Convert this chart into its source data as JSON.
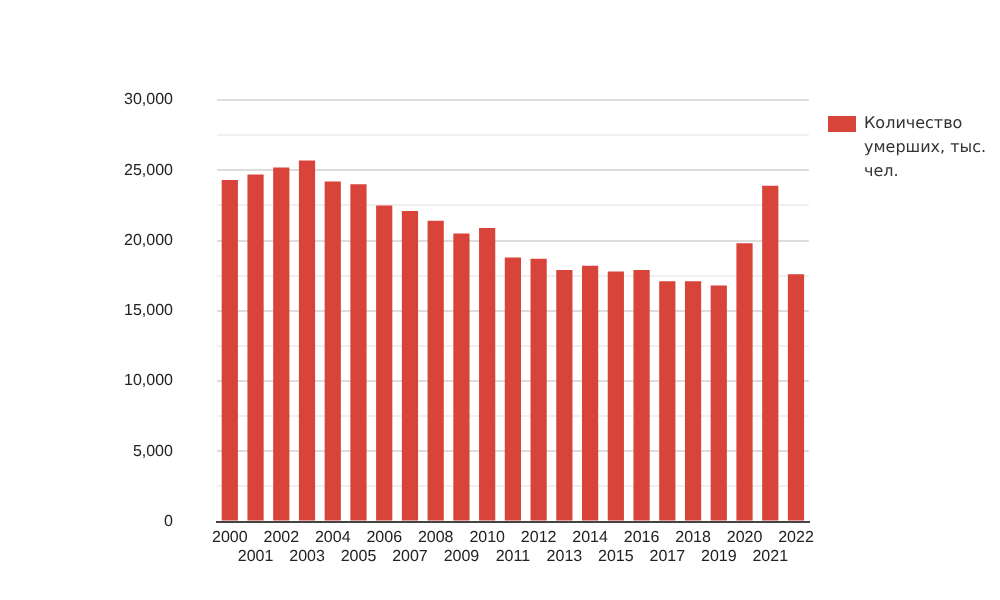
{
  "chart_data": {
    "type": "bar",
    "categories": [
      "2000",
      "2001",
      "2002",
      "2003",
      "2004",
      "2005",
      "2006",
      "2007",
      "2008",
      "2009",
      "2010",
      "2011",
      "2012",
      "2013",
      "2014",
      "2015",
      "2016",
      "2017",
      "2018",
      "2019",
      "2020",
      "2021",
      "2022"
    ],
    "series": [
      {
        "name": "Количество умерших, тыс. чел.",
        "color": "#d9443a",
        "values": [
          24300,
          24700,
          25200,
          25700,
          24200,
          24000,
          22500,
          22100,
          21400,
          20500,
          20900,
          18800,
          18700,
          17900,
          18200,
          17800,
          17900,
          17100,
          17100,
          16800,
          19800,
          23900,
          17600
        ]
      }
    ],
    "ylim": [
      0,
      30000
    ],
    "yticks": [
      0,
      {
        "value": 2500,
        "label": null
      },
      "5,000",
      {
        "value": 7500,
        "label": null
      },
      {
        "value": 10000,
        "label": "10,000"
      },
      {
        "value": 12500,
        "label": null
      },
      {
        "value": 15000,
        "label": "15,000"
      },
      {
        "value": 17500,
        "label": null
      },
      {
        "value": 20000,
        "label": "20,000"
      },
      {
        "value": 22500,
        "label": null
      },
      {
        "value": 25000,
        "label": "25,000"
      },
      {
        "value": 27500,
        "label": null
      },
      {
        "value": 30000,
        "label": "30,000"
      }
    ],
    "grid": "y",
    "legend": "right"
  }
}
